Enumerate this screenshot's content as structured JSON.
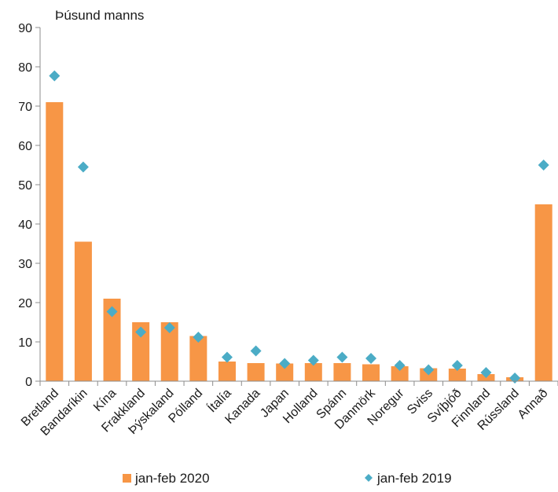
{
  "chart_data": {
    "type": "bar",
    "ylabel": "Þúsund manns",
    "ylim": [
      0,
      90
    ],
    "yticks": [
      0,
      10,
      20,
      30,
      40,
      50,
      60,
      70,
      80,
      90
    ],
    "categories": [
      "Bretland",
      "Bandaríkin",
      "Kína",
      "Frakkland",
      "Þýskaland",
      "Pólland",
      "Ítalía",
      "Kanada",
      "Japan",
      "Holland",
      "Spánn",
      "Danmörk",
      "Noregur",
      "Sviss",
      "Svíþjóð",
      "Finnland",
      "Rússland",
      "Annað"
    ],
    "series": [
      {
        "name": "jan-feb 2020",
        "type": "bar",
        "color": "#F79646",
        "values": [
          71,
          35.5,
          21,
          15,
          15,
          11.5,
          5,
          4.6,
          4.5,
          4.6,
          4.6,
          4.3,
          3.8,
          3.3,
          3.2,
          1.8,
          1.0,
          45
        ]
      },
      {
        "name": "jan-feb 2019",
        "type": "scatter",
        "marker": "diamond",
        "color": "#4BACC6",
        "values": [
          77.7,
          54.5,
          17.7,
          12.5,
          13.6,
          11.2,
          6.1,
          7.7,
          4.5,
          5.3,
          6.1,
          5.8,
          4.0,
          2.9,
          4.0,
          2.2,
          0.8,
          55.0
        ]
      }
    ],
    "legend_position": "bottom",
    "grid": false
  }
}
